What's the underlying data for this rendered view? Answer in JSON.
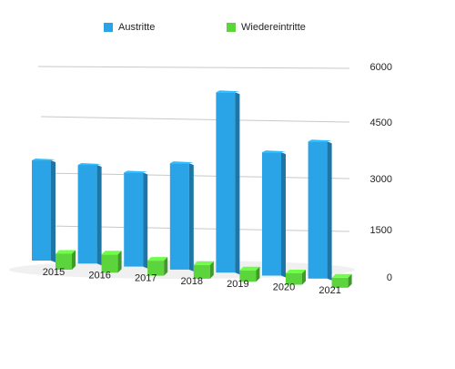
{
  "chart_data": {
    "type": "bar",
    "categories": [
      "2015",
      "2016",
      "2017",
      "2018",
      "2019",
      "2020",
      "2021"
    ],
    "series": [
      {
        "name": "Austritte",
        "color": "#2aa4e6",
        "values": [
          3250,
          3200,
          3050,
          3450,
          5850,
          4000,
          4450
        ]
      },
      {
        "name": "Wiedereintritte",
        "color": "#5cd43c",
        "values": [
          350,
          400,
          330,
          300,
          250,
          250,
          220
        ]
      }
    ],
    "yticks": [
      "6000",
      "4500",
      "3000",
      "1500",
      "0"
    ],
    "ylim": [
      0,
      6000
    ],
    "grid": true,
    "legend_position": "top",
    "view": "3d-perspective"
  }
}
